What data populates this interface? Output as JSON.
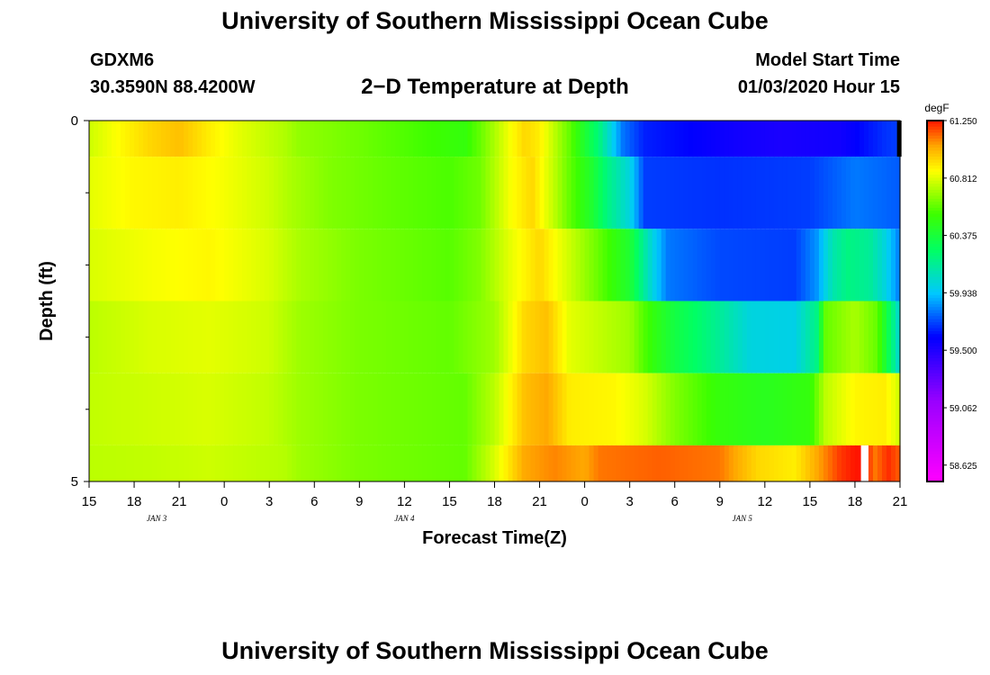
{
  "header": {
    "title": "University of Southern Mississippi Ocean Cube",
    "station_id": "GDXM6",
    "coordinates": "30.3590N 88.4200W",
    "plot_title": "2−D Temperature at Depth",
    "model_start_label": "Model Start Time",
    "model_start_value": "01/03/2020 Hour 15"
  },
  "footer": {
    "title": "University of Southern Mississippi Ocean Cube"
  },
  "chart_data": {
    "type": "heatmap",
    "xlabel": "Forecast Time(Z)",
    "ylabel": "Depth (ft)",
    "x_tick_labels": [
      "15",
      "18",
      "21",
      "0",
      "3",
      "6",
      "9",
      "12",
      "15",
      "18",
      "21",
      "0",
      "3",
      "6",
      "9",
      "12",
      "15",
      "18",
      "21"
    ],
    "date_labels": [
      {
        "label": "JAN 3",
        "at_hour": 4.5
      },
      {
        "label": "JAN 4",
        "at_hour": 21
      },
      {
        "label": "JAN 5",
        "at_hour": 43.5
      }
    ],
    "x_range_hours": [
      0,
      54
    ],
    "y_tick_labels": [
      {
        "label": "0",
        "depth": 0
      },
      {
        "label": "5",
        "depth": 5
      }
    ],
    "y_minor_ticks": [
      1,
      2,
      3,
      4
    ],
    "depth_range_ft": [
      0,
      5
    ],
    "row_depth_bounds": [
      [
        0,
        0.5
      ],
      [
        0.5,
        1.5
      ],
      [
        1.5,
        2.5
      ],
      [
        2.5,
        3.5
      ],
      [
        3.5,
        4.5
      ],
      [
        4.5,
        5
      ]
    ],
    "colorbar": {
      "unit": "degF",
      "min": 58.5,
      "max": 61.25,
      "tick_labels": [
        "61.250",
        "60.812",
        "60.375",
        "59.938",
        "59.500",
        "59.062",
        "58.625"
      ],
      "tick_values": [
        61.25,
        60.812,
        60.375,
        59.938,
        59.5,
        59.062,
        58.625
      ]
    },
    "profiles": [
      [
        [
          0,
          60.78
        ],
        [
          2,
          60.87
        ],
        [
          4,
          60.95
        ],
        [
          6,
          61.0
        ],
        [
          8,
          60.9
        ],
        [
          10,
          60.82
        ],
        [
          13,
          60.73
        ],
        [
          14,
          60.68
        ],
        [
          18,
          60.62
        ],
        [
          22,
          60.55
        ],
        [
          25,
          60.5
        ],
        [
          26,
          60.6
        ],
        [
          28,
          60.85
        ],
        [
          29,
          60.95
        ],
        [
          30,
          60.9
        ],
        [
          31,
          60.75
        ],
        [
          32,
          60.6
        ],
        [
          33,
          60.4
        ],
        [
          34,
          60.2
        ],
        [
          35.5,
          59.8
        ],
        [
          37,
          59.65
        ],
        [
          40,
          59.6
        ],
        [
          43,
          59.55
        ],
        [
          46,
          59.52
        ],
        [
          50,
          59.55
        ],
        [
          53,
          59.68
        ],
        [
          53.8,
          59.7
        ]
      ],
      [
        [
          0,
          60.82
        ],
        [
          3,
          60.88
        ],
        [
          6,
          60.9
        ],
        [
          9,
          60.85
        ],
        [
          12,
          60.78
        ],
        [
          13.5,
          60.72
        ],
        [
          16,
          60.65
        ],
        [
          20,
          60.6
        ],
        [
          24,
          60.56
        ],
        [
          26,
          60.62
        ],
        [
          28,
          60.85
        ],
        [
          29.5,
          60.95
        ],
        [
          31,
          60.75
        ],
        [
          32,
          60.6
        ],
        [
          33.5,
          60.4
        ],
        [
          34.5,
          60.2
        ],
        [
          36,
          60.0
        ],
        [
          37,
          59.7
        ],
        [
          42,
          59.68
        ],
        [
          48,
          59.7
        ],
        [
          51,
          59.8
        ],
        [
          54,
          59.75
        ]
      ],
      [
        [
          0,
          60.8
        ],
        [
          4,
          60.85
        ],
        [
          8,
          60.88
        ],
        [
          12,
          60.8
        ],
        [
          14,
          60.72
        ],
        [
          18,
          60.64
        ],
        [
          24,
          60.58
        ],
        [
          26,
          60.65
        ],
        [
          28,
          60.82
        ],
        [
          30,
          60.95
        ],
        [
          32,
          60.78
        ],
        [
          34,
          60.6
        ],
        [
          36,
          60.4
        ],
        [
          37.5,
          60.0
        ],
        [
          38.5,
          59.8
        ],
        [
          42,
          59.72
        ],
        [
          47,
          59.7
        ],
        [
          48.5,
          59.85
        ],
        [
          49.5,
          60.1
        ],
        [
          50.5,
          60.2
        ],
        [
          52,
          60.15
        ],
        [
          53,
          60.0
        ],
        [
          54,
          59.8
        ]
      ],
      [
        [
          0,
          60.75
        ],
        [
          4,
          60.8
        ],
        [
          8,
          60.82
        ],
        [
          12,
          60.78
        ],
        [
          14,
          60.7
        ],
        [
          18,
          60.64
        ],
        [
          24,
          60.6
        ],
        [
          27,
          60.7
        ],
        [
          29,
          60.95
        ],
        [
          30.5,
          61.0
        ],
        [
          32,
          60.82
        ],
        [
          36,
          60.7
        ],
        [
          37.5,
          60.5
        ],
        [
          39,
          60.35
        ],
        [
          42,
          60.15
        ],
        [
          44,
          60.0
        ],
        [
          47,
          59.98
        ],
        [
          48.5,
          60.2
        ],
        [
          49,
          60.6
        ],
        [
          51,
          60.72
        ],
        [
          52.5,
          60.6
        ],
        [
          53.5,
          60.2
        ],
        [
          54,
          60.0
        ]
      ],
      [
        [
          0,
          60.76
        ],
        [
          4,
          60.78
        ],
        [
          8,
          60.8
        ],
        [
          12,
          60.76
        ],
        [
          14,
          60.7
        ],
        [
          18,
          60.64
        ],
        [
          25,
          60.6
        ],
        [
          27,
          60.75
        ],
        [
          29,
          61.0
        ],
        [
          30.5,
          61.05
        ],
        [
          32,
          60.9
        ],
        [
          35,
          60.88
        ],
        [
          37,
          60.8
        ],
        [
          39,
          60.65
        ],
        [
          42,
          60.5
        ],
        [
          45,
          60.45
        ],
        [
          48,
          60.5
        ],
        [
          49,
          60.75
        ],
        [
          51,
          60.88
        ],
        [
          53,
          60.9
        ],
        [
          54,
          60.78
        ]
      ],
      [
        [
          0,
          60.75
        ],
        [
          4,
          60.76
        ],
        [
          8,
          60.78
        ],
        [
          13,
          60.74
        ],
        [
          14,
          60.7
        ],
        [
          18,
          60.64
        ],
        [
          25,
          60.6
        ],
        [
          27,
          60.8
        ],
        [
          29,
          61.05
        ],
        [
          31,
          61.1
        ],
        [
          33,
          61.05
        ],
        [
          34,
          61.12
        ],
        [
          38,
          61.15
        ],
        [
          42,
          61.12
        ],
        [
          44.5,
          60.95
        ],
        [
          47,
          60.9
        ],
        [
          48.5,
          61.05
        ],
        [
          50,
          61.2
        ],
        [
          51,
          61.25
        ],
        [
          51.8,
          61.3
        ],
        [
          52.2,
          61.1
        ],
        [
          53.2,
          61.22
        ],
        [
          54,
          61.15
        ]
      ]
    ],
    "masked_cells": [
      {
        "row": 0,
        "x_start": 53.8,
        "x_end": 54.1,
        "color": "#000000"
      },
      {
        "row": 5,
        "x_start": 51.4,
        "x_end": 51.9,
        "color": "#ffffff"
      }
    ]
  }
}
